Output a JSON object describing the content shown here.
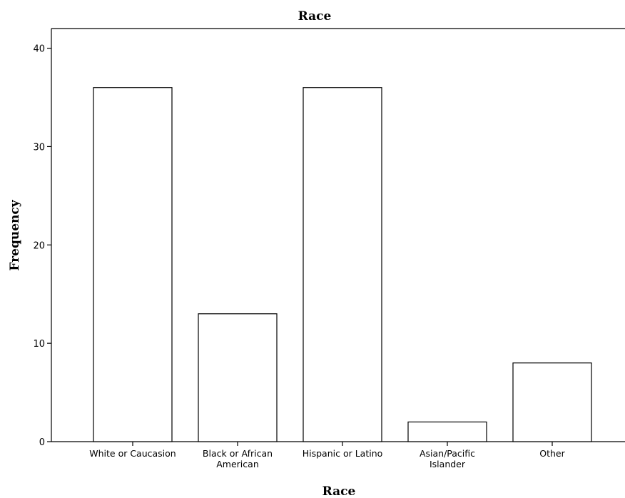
{
  "chart_data": {
    "type": "bar",
    "title": "Race",
    "xlabel": "Race",
    "ylabel": "Frequency",
    "categories": [
      [
        "White or Caucasion"
      ],
      [
        "Black or African",
        "American"
      ],
      [
        "Hispanic or Latino"
      ],
      [
        "Asian/Pacific",
        "Islander"
      ],
      [
        "Other"
      ]
    ],
    "values": [
      36,
      13,
      36,
      2,
      8
    ],
    "ylim": [
      0,
      42
    ],
    "yticks": [
      0,
      10,
      20,
      30,
      40
    ],
    "grid": false,
    "legend": "none",
    "bar_color": "#ffffff",
    "edge_color": "#000000"
  }
}
